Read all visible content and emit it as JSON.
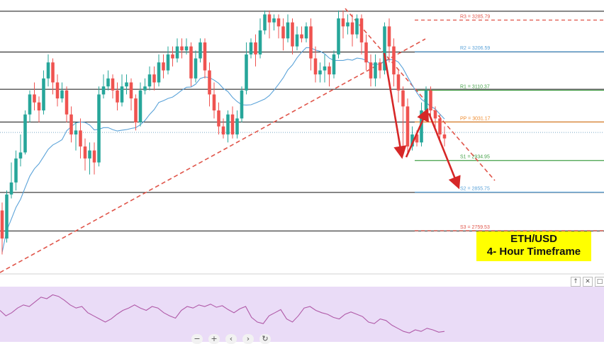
{
  "caption": {
    "line1": "ETH/USD",
    "line2": "4- Hour Timeframe"
  },
  "colors": {
    "bull": "#26a69a",
    "bear": "#ef5350",
    "ma": "#5ba3d9",
    "trend": "#e0554a",
    "arrow": "#d62727",
    "rsi_bg": "#eadcf7",
    "rsi_line": "#b05aa8",
    "caption_bg": "#ffff00"
  },
  "controls": {
    "zoom_out_icon": "minus-icon",
    "zoom_in_icon": "plus-icon",
    "scroll_left_icon": "chevron-left-icon",
    "scroll_right_icon": "chevron-right-icon",
    "reset_icon": "reset-icon",
    "pane_up_icon": "arrow-up-icon",
    "pane_close_icon": "close-icon",
    "pane_maximize_icon": "maximize-icon",
    "zoom_out": "−",
    "zoom_in": "+",
    "scroll_left": "‹",
    "scroll_right": "›",
    "reset": "↻",
    "pane_up": "↑",
    "pane_close": "✕",
    "pane_max": "□"
  },
  "chart_data": {
    "type": "candlestick",
    "title": "",
    "ylim": [
      2655,
      3336
    ],
    "pivots": [
      {
        "key": "R3",
        "label": "R3 = 3285.79",
        "value": 3285.79,
        "color": "#e0554a",
        "style": "dashed"
      },
      {
        "key": "R2",
        "label": "R2 = 3206.59",
        "value": 3206.59,
        "color": "#5ba3d9",
        "style": "solid"
      },
      {
        "key": "R1",
        "label": "R1 = 3110.37",
        "value": 3110.37,
        "color": "#43a047",
        "style": "solid"
      },
      {
        "key": "PP",
        "label": "PP = 3031.17",
        "value": 3031.17,
        "color": "#ef8a2b",
        "style": "solid"
      },
      {
        "key": "S1",
        "label": "S1 = 2934.95",
        "value": 2934.95,
        "color": "#43a047",
        "style": "solid"
      },
      {
        "key": "S2",
        "label": "S2 = 2855.75",
        "value": 2855.75,
        "color": "#5ba3d9",
        "style": "solid"
      },
      {
        "key": "S3",
        "label": "S3 = 2759.53",
        "value": 2759.53,
        "color": "#e0554a",
        "style": "dashed"
      }
    ],
    "horizontal_levels": [
      3308,
      3206,
      3113,
      3031,
      2855,
      2759
    ],
    "last_price": 3005,
    "candles": [
      [
        2810,
        2740,
        2700,
        2830
      ],
      [
        2740,
        2850,
        2730,
        2860
      ],
      [
        2850,
        2880,
        2840,
        2930
      ],
      [
        2880,
        2940,
        2860,
        2960
      ],
      [
        2940,
        2955,
        2920,
        3000
      ],
      [
        2955,
        3050,
        2950,
        3060
      ],
      [
        3050,
        3100,
        3030,
        3110
      ],
      [
        3100,
        3080,
        3060,
        3130
      ],
      [
        3080,
        3060,
        3030,
        3095
      ],
      [
        3060,
        3140,
        3050,
        3160
      ],
      [
        3140,
        3180,
        3120,
        3200
      ],
      [
        3180,
        3130,
        3100,
        3190
      ],
      [
        3130,
        3090,
        3070,
        3150
      ],
      [
        3090,
        3110,
        3080,
        3130
      ],
      [
        3110,
        3050,
        3030,
        3120
      ],
      [
        3050,
        3000,
        2980,
        3070
      ],
      [
        3000,
        3010,
        2960,
        3030
      ],
      [
        3010,
        2970,
        2940,
        3040
      ],
      [
        2970,
        2940,
        2910,
        2990
      ],
      [
        2940,
        2960,
        2900,
        2980
      ],
      [
        2960,
        2930,
        2900,
        2980
      ],
      [
        2930,
        3100,
        2920,
        3120
      ],
      [
        3100,
        3120,
        3090,
        3150
      ],
      [
        3120,
        3140,
        3110,
        3160
      ],
      [
        3140,
        3110,
        3090,
        3150
      ],
      [
        3110,
        3080,
        3060,
        3130
      ],
      [
        3080,
        3120,
        3070,
        3150
      ],
      [
        3120,
        3130,
        3100,
        3150
      ],
      [
        3130,
        3090,
        3060,
        3140
      ],
      [
        3090,
        3030,
        3010,
        3100
      ],
      [
        3030,
        3110,
        3020,
        3130
      ],
      [
        3110,
        3120,
        3100,
        3140
      ],
      [
        3120,
        3150,
        3110,
        3170
      ],
      [
        3150,
        3130,
        3110,
        3170
      ],
      [
        3130,
        3180,
        3120,
        3200
      ],
      [
        3180,
        3160,
        3140,
        3200
      ],
      [
        3160,
        3200,
        3150,
        3220
      ],
      [
        3200,
        3190,
        3170,
        3220
      ],
      [
        3190,
        3220,
        3180,
        3240
      ],
      [
        3220,
        3210,
        3190,
        3240
      ],
      [
        3210,
        3220,
        3200,
        3240
      ],
      [
        3220,
        3140,
        3120,
        3230
      ],
      [
        3140,
        3190,
        3130,
        3210
      ],
      [
        3190,
        3230,
        3180,
        3240
      ],
      [
        3230,
        3160,
        3140,
        3240
      ],
      [
        3160,
        3100,
        3070,
        3180
      ],
      [
        3100,
        3060,
        3040,
        3130
      ],
      [
        3060,
        3020,
        3000,
        3080
      ],
      [
        3020,
        3000,
        2990,
        3040
      ],
      [
        3000,
        3050,
        2980,
        3060
      ],
      [
        3050,
        3000,
        2990,
        3070
      ],
      [
        3000,
        3040,
        2990,
        3060
      ],
      [
        3040,
        3110,
        3030,
        3120
      ],
      [
        3110,
        3200,
        3100,
        3230
      ],
      [
        3200,
        3230,
        3190,
        3240
      ],
      [
        3230,
        3200,
        3170,
        3250
      ],
      [
        3200,
        3260,
        3190,
        3290
      ],
      [
        3260,
        3300,
        3250,
        3310
      ],
      [
        3300,
        3280,
        3240,
        3310
      ],
      [
        3280,
        3290,
        3260,
        3300
      ],
      [
        3290,
        3270,
        3240,
        3300
      ],
      [
        3270,
        3240,
        3210,
        3290
      ],
      [
        3240,
        3280,
        3230,
        3300
      ],
      [
        3280,
        3220,
        3200,
        3290
      ],
      [
        3220,
        3250,
        3210,
        3270
      ],
      [
        3250,
        3240,
        3230,
        3270
      ],
      [
        3240,
        3270,
        3230,
        3280
      ],
      [
        3270,
        3190,
        3160,
        3290
      ],
      [
        3190,
        3150,
        3130,
        3220
      ],
      [
        3150,
        3160,
        3130,
        3180
      ],
      [
        3160,
        3170,
        3130,
        3200
      ],
      [
        3170,
        3150,
        3120,
        3180
      ],
      [
        3150,
        3200,
        3140,
        3210
      ],
      [
        3200,
        3290,
        3190,
        3310
      ],
      [
        3290,
        3270,
        3240,
        3310
      ],
      [
        3270,
        3280,
        3250,
        3300
      ],
      [
        3280,
        3250,
        3220,
        3300
      ],
      [
        3250,
        3290,
        3240,
        3300
      ],
      [
        3290,
        3230,
        3200,
        3300
      ],
      [
        3230,
        3180,
        3160,
        3250
      ],
      [
        3180,
        3140,
        3120,
        3200
      ],
      [
        3140,
        3180,
        3120,
        3200
      ],
      [
        3180,
        3160,
        3140,
        3190
      ],
      [
        3160,
        3270,
        3150,
        3280
      ],
      [
        3270,
        3220,
        3180,
        3290
      ],
      [
        3220,
        3150,
        3120,
        3240
      ],
      [
        3150,
        3110,
        3080,
        3160
      ],
      [
        3110,
        3070,
        2960,
        3120
      ],
      [
        3070,
        2970,
        2950,
        3090
      ],
      [
        2970,
        3000,
        2960,
        3020
      ],
      [
        3000,
        2980,
        2970,
        3010
      ],
      [
        2980,
        3060,
        2970,
        3080
      ],
      [
        3060,
        3110,
        3050,
        3120
      ],
      [
        3110,
        3060,
        3040,
        3120
      ],
      [
        3060,
        3040,
        3010,
        3070
      ],
      [
        3040,
        3000,
        2980,
        3050
      ],
      [
        3000,
        2990,
        2970,
        3020
      ]
    ],
    "rsi": [
      55,
      48,
      52,
      58,
      62,
      60,
      66,
      72,
      70,
      75,
      73,
      68,
      62,
      58,
      60,
      52,
      48,
      44,
      40,
      44,
      50,
      55,
      58,
      62,
      58,
      55,
      60,
      58,
      52,
      48,
      45,
      55,
      60,
      58,
      62,
      60,
      63,
      59,
      61,
      56,
      52,
      57,
      60,
      46,
      40,
      38,
      48,
      52,
      56,
      44,
      40,
      48,
      58,
      60,
      55,
      52,
      50,
      46,
      44,
      50,
      53,
      50,
      47,
      40,
      38,
      44,
      42,
      36,
      32,
      28,
      26,
      30,
      28,
      32,
      30,
      27,
      28
    ]
  }
}
